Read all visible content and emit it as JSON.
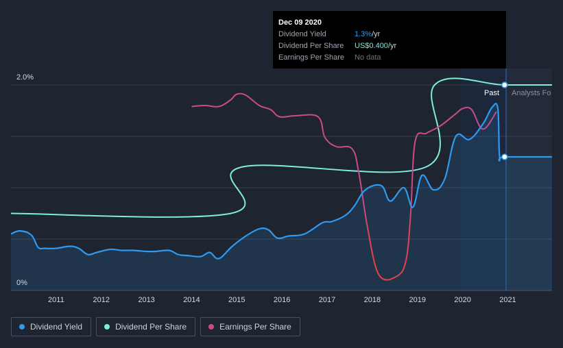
{
  "tooltip": {
    "date": "Dec 09 2020",
    "rows": [
      {
        "label": "Dividend Yield",
        "value": "1.3%",
        "unit": " /yr"
      },
      {
        "label": "Dividend Per Share",
        "value": "US$0.400",
        "unit": " /yr"
      },
      {
        "label": "Earnings Per Share",
        "value": "No data",
        "unit": ""
      }
    ]
  },
  "labels": {
    "past": "Past",
    "forecast": "Analysts Fo"
  },
  "legend": [
    {
      "label": "Dividend Yield",
      "color": "#2e9bf0"
    },
    {
      "label": "Dividend Per Share",
      "color": "#7eeedd"
    },
    {
      "label": "Earnings Per Share",
      "color": "#c84b8c"
    }
  ],
  "colors": {
    "background": "#1f2431",
    "grid": "#3a404e",
    "dividend_yield": "#2e9bf0",
    "dividend_per_share": "#7eeedd",
    "earnings_per_share": "#c84b8c",
    "eps_negative": "#e4424c"
  },
  "chart_data": {
    "type": "line",
    "title": "",
    "xlabel": "",
    "ylabel": "",
    "xlim": [
      2010.0,
      2021.98
    ],
    "ylim": [
      0,
      2.0
    ],
    "x_ticks": [
      "2011",
      "2012",
      "2013",
      "2014",
      "2015",
      "2016",
      "2017",
      "2018",
      "2019",
      "2020",
      "2021"
    ],
    "y_ticks": [
      {
        "value": 0,
        "label": "0%"
      },
      {
        "value": 2.0,
        "label": "2.0%"
      }
    ],
    "legend_placement": "bottom-left",
    "series": [
      {
        "name": "Dividend Yield",
        "axis": "percent",
        "x": [
          2010.0,
          2010.2,
          2010.45,
          2010.6,
          2010.75,
          2011.0,
          2011.3,
          2011.5,
          2011.7,
          2011.9,
          2012.2,
          2012.45,
          2012.7,
          2013.0,
          2013.2,
          2013.5,
          2013.7,
          2013.9,
          2014.2,
          2014.4,
          2014.6,
          2014.9,
          2015.2,
          2015.5,
          2015.7,
          2015.9,
          2016.15,
          2016.5,
          2016.9,
          2017.1,
          2017.4,
          2017.6,
          2017.85,
          2018.2,
          2018.4,
          2018.7,
          2018.9,
          2019.1,
          2019.35,
          2019.6,
          2019.85,
          2020.15,
          2020.45,
          2020.65,
          2020.78,
          2020.82,
          2020.93,
          2021.98
        ],
        "y": [
          0.55,
          0.58,
          0.54,
          0.42,
          0.41,
          0.41,
          0.43,
          0.41,
          0.35,
          0.37,
          0.4,
          0.39,
          0.39,
          0.38,
          0.38,
          0.39,
          0.35,
          0.34,
          0.33,
          0.37,
          0.31,
          0.43,
          0.53,
          0.6,
          0.59,
          0.51,
          0.53,
          0.55,
          0.66,
          0.67,
          0.73,
          0.82,
          0.98,
          1.02,
          0.87,
          1.0,
          0.81,
          1.12,
          0.98,
          1.08,
          1.5,
          1.47,
          1.62,
          1.78,
          1.77,
          1.3,
          1.3,
          1.3
        ]
      },
      {
        "name": "Dividend Per Share",
        "axis": "scaled",
        "x": [
          2010.0,
          2014.87,
          2015.1,
          2019.18,
          2019.38,
          2020.93,
          2021.98
        ],
        "y": [
          0.75,
          0.75,
          1.2,
          1.2,
          2.0,
          2.0,
          2.0
        ]
      },
      {
        "name": "Earnings Per Share",
        "axis": "scaled",
        "x": [
          2014.0,
          2014.3,
          2014.6,
          2014.85,
          2015.0,
          2015.2,
          2015.5,
          2015.75,
          2015.95,
          2016.3,
          2016.8,
          2016.95,
          2017.2,
          2017.55,
          2017.7,
          2017.9,
          2018.15,
          2018.55,
          2018.75,
          2018.85,
          2018.95,
          2019.2,
          2019.5,
          2019.85,
          2020.0,
          2020.2,
          2020.45,
          2020.75
        ],
        "y": [
          1.79,
          1.8,
          1.79,
          1.85,
          1.91,
          1.9,
          1.8,
          1.76,
          1.69,
          1.7,
          1.69,
          1.49,
          1.4,
          1.38,
          1.15,
          0.6,
          0.15,
          0.14,
          0.3,
          0.75,
          1.45,
          1.53,
          1.6,
          1.72,
          1.77,
          1.76,
          1.57,
          1.74
        ]
      }
    ],
    "markers": [
      {
        "series": "Dividend Per Share",
        "x": 2020.93,
        "y": 2.0
      },
      {
        "series": "Dividend Yield",
        "x": 2020.93,
        "y": 1.3
      }
    ]
  }
}
